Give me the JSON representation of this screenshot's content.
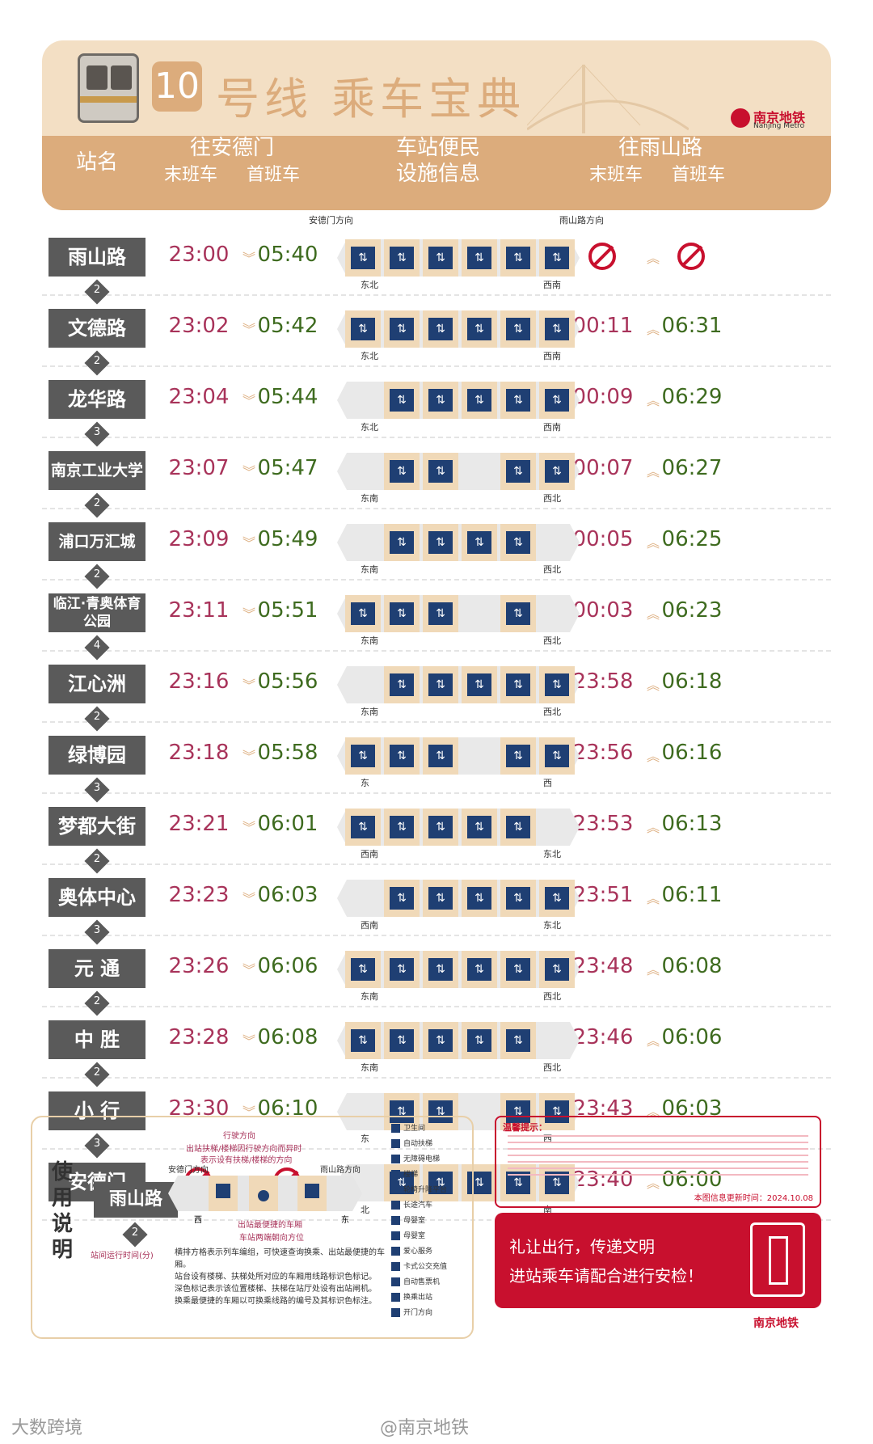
{
  "header": {
    "line_number": "10",
    "title": "号线 乘车宝典",
    "logo_cn": "南京地铁",
    "logo_en": "Nanjing Metro",
    "col_station": "站名",
    "col_to_andemen": "往安德门",
    "col_facilities_1": "车站便民",
    "col_facilities_2": "设施信息",
    "col_to_yushanlu": "往雨山路",
    "last_train": "末班车",
    "first_train": "首班车"
  },
  "strip_labels": {
    "andemen_direction": "安德门方向",
    "yushanlu_direction": "雨山路方向"
  },
  "stations": [
    {
      "name": "雨山路",
      "a_last": "23:00",
      "a_first": "05:40",
      "b_last": null,
      "b_first": null,
      "exit_left": "东北",
      "exit_right": "西南",
      "interval": "2"
    },
    {
      "name": "文德路",
      "a_last": "23:02",
      "a_first": "05:42",
      "b_last": "00:11",
      "b_first": "06:31",
      "exit_left": "东北",
      "exit_right": "西南",
      "interval": "2"
    },
    {
      "name": "龙华路",
      "a_last": "23:04",
      "a_first": "05:44",
      "b_last": "00:09",
      "b_first": "06:29",
      "exit_left": "东北",
      "exit_right": "西南",
      "interval": "3"
    },
    {
      "name": "南京工业大学",
      "a_last": "23:07",
      "a_first": "05:47",
      "b_last": "00:07",
      "b_first": "06:27",
      "exit_left": "东南",
      "exit_right": "西北",
      "interval": "2"
    },
    {
      "name": "浦口万汇城",
      "a_last": "23:09",
      "a_first": "05:49",
      "b_last": "00:05",
      "b_first": "06:25",
      "exit_left": "东南",
      "exit_right": "西北",
      "interval": "2"
    },
    {
      "name": "临江·青奥体育公园",
      "a_last": "23:11",
      "a_first": "05:51",
      "b_last": "00:03",
      "b_first": "06:23",
      "exit_left": "东南",
      "exit_right": "西北",
      "interval": "4"
    },
    {
      "name": "江心洲",
      "a_last": "23:16",
      "a_first": "05:56",
      "b_last": "23:58",
      "b_first": "06:18",
      "exit_left": "东南",
      "exit_right": "西北",
      "interval": "2"
    },
    {
      "name": "绿博园",
      "a_last": "23:18",
      "a_first": "05:58",
      "b_last": "23:56",
      "b_first": "06:16",
      "exit_left": "东",
      "exit_right": "西",
      "interval": "3"
    },
    {
      "name": "梦都大街",
      "a_last": "23:21",
      "a_first": "06:01",
      "b_last": "23:53",
      "b_first": "06:13",
      "exit_left": "西南",
      "exit_right": "东北",
      "interval": "2"
    },
    {
      "name": "奥体中心",
      "a_last": "23:23",
      "a_first": "06:03",
      "b_last": "23:51",
      "b_first": "06:11",
      "exit_left": "西南",
      "exit_right": "东北",
      "interval": "3"
    },
    {
      "name": "元 通",
      "a_last": "23:26",
      "a_first": "06:06",
      "b_last": "23:48",
      "b_first": "06:08",
      "exit_left": "东南",
      "exit_right": "西北",
      "interval": "2"
    },
    {
      "name": "中 胜",
      "a_last": "23:28",
      "a_first": "06:08",
      "b_last": "23:46",
      "b_first": "06:06",
      "exit_left": "东南",
      "exit_right": "西北",
      "interval": "2"
    },
    {
      "name": "小 行",
      "a_last": "23:30",
      "a_first": "06:10",
      "b_last": "23:43",
      "b_first": "06:03",
      "exit_left": "东",
      "exit_right": "西",
      "interval": "3"
    },
    {
      "name": "安德门",
      "a_last": null,
      "a_first": null,
      "b_last": "23:40",
      "b_first": "06:00",
      "exit_left": "北",
      "exit_right": "南",
      "interval": null
    }
  ],
  "legend": {
    "title_chars": [
      "使",
      "用",
      "说",
      "明"
    ],
    "example_station": "雨山路",
    "example_interval": "2",
    "interval_caption": "站间运行时间(分)",
    "direction_of_travel": "行驶方向",
    "escalator_note_1": "出站扶梯/楼梯因行驶方向而异时",
    "escalator_note_2": "表示设有扶梯/楼梯的方向",
    "andemen_dir": "安德门方向",
    "yushanlu_dir": "雨山路方向",
    "west": "西",
    "east": "东",
    "nearest_car": "出站最便捷的车厢",
    "exit_orientation": "车站两端朝向方位",
    "bullets": [
      "横排方格表示列车编组，可快速查询换乘、出站最便捷的车厢。",
      "站台设有楼梯、扶梯处所对应的车厢用线路标识色标记。",
      "深色标记表示该位置楼梯、扶梯在站厅处设有出站闸机。",
      "换乘最便捷的车厢以可换乘线路的编号及其标识色标注。"
    ],
    "icon_labels": [
      "卫生间",
      "自动扶梯",
      "无障碍电梯",
      "楼梯",
      "轮椅升降平台",
      "长途汽车",
      "母婴室",
      "母婴室",
      "爱心服务",
      "卡式公交充值",
      "自动售票机",
      "换乘出站",
      "开门方向"
    ]
  },
  "notice": {
    "title": "温馨提示：",
    "updated": "本图信息更新时间：2024.10.08"
  },
  "banner": {
    "line1": "礼让出行，传递文明",
    "line2": "进站乘车请配合进行安检！",
    "logo": "南京地铁"
  },
  "footer": {
    "left": "大数跨境",
    "right": "@南京地铁"
  },
  "colors": {
    "header_bg": "#f3dfc4",
    "header_band": "#dcac7c",
    "last_train": "#a8335a",
    "first_train": "#3e6b1f",
    "brand_red": "#c8102e",
    "station_bg": "#5a5a5a",
    "icon_blue": "#1f3f73"
  }
}
